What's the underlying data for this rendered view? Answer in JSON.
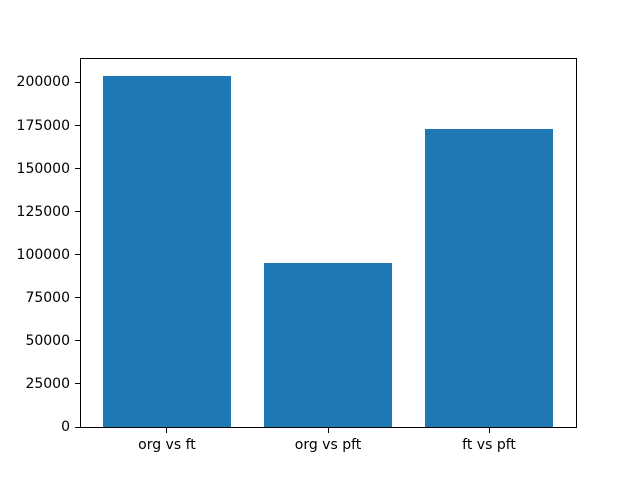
{
  "chart_data": {
    "type": "bar",
    "title": "",
    "xlabel": "",
    "ylabel": "",
    "categories": [
      "org vs ft",
      "org vs pft",
      "ft vs pft"
    ],
    "values": [
      204000,
      95000,
      173000
    ],
    "yticks": [
      0,
      25000,
      50000,
      75000,
      100000,
      125000,
      150000,
      175000,
      200000
    ],
    "ylim": [
      0,
      214200
    ],
    "xlim": [
      -0.54,
      2.54
    ],
    "bar_width": 0.8,
    "bar_color": "#1f77b4",
    "axis_color": "#000000",
    "background_color": "#ffffff",
    "grid": false
  }
}
